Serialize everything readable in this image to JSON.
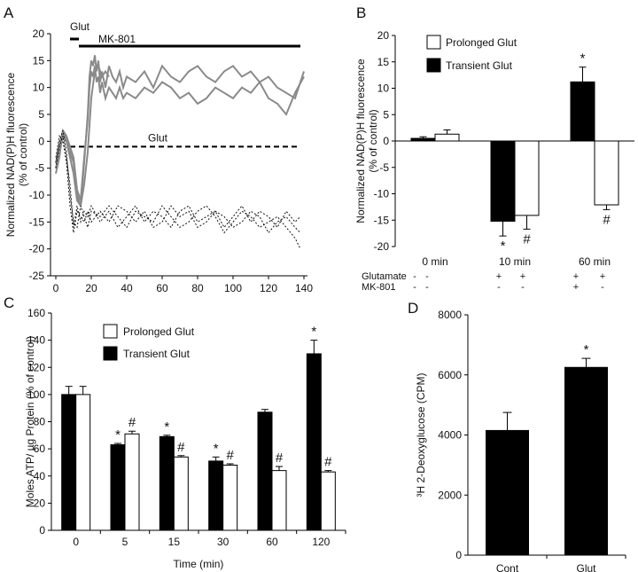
{
  "chart_data": [
    {
      "panel": "A",
      "type": "line",
      "ylabel": "Normalized NAD(P)H fluorescence (% of control)",
      "ylabel_lines": [
        "Normalized NAD(P)H fluorescence",
        "(% of control)"
      ],
      "xlim": [
        0,
        140
      ],
      "ylim": [
        -25,
        20
      ],
      "xticks": [
        0,
        20,
        40,
        60,
        80,
        100,
        120,
        140
      ],
      "yticks": [
        20,
        15,
        10,
        5,
        0,
        -5,
        -10,
        -15,
        -20,
        -25
      ],
      "annotations": {
        "glut_bar": "Glut",
        "mk801_bar": "MK-801",
        "glut_line": "Glut"
      },
      "treatment_bars": {
        "glut": [
          8,
          13
        ],
        "mk801": [
          13,
          138
        ]
      },
      "reference_level": -1,
      "series": [
        {
          "style": "solid-gray",
          "x": [
            0,
            2,
            4,
            6,
            8,
            10,
            12,
            14,
            16,
            18,
            19,
            20,
            21,
            22,
            23,
            24,
            25,
            26,
            28,
            30,
            32,
            34,
            36,
            38,
            40,
            45,
            50,
            55,
            60,
            65,
            70,
            75,
            80,
            85,
            90,
            95,
            100,
            105,
            110,
            115,
            120,
            125,
            130,
            135,
            140
          ],
          "values": [
            -5,
            -2,
            1,
            0,
            -2,
            -4,
            -10,
            -12,
            -4,
            5,
            12,
            15,
            14,
            16,
            13,
            15,
            11,
            13,
            10,
            14,
            12,
            11,
            13,
            10,
            12,
            11,
            13,
            10,
            14,
            12,
            11,
            13,
            14,
            12,
            11,
            13,
            14,
            12,
            13,
            11,
            12,
            10,
            9,
            8,
            13
          ]
        },
        {
          "style": "solid-gray",
          "x": [
            0,
            2,
            4,
            6,
            8,
            10,
            12,
            14,
            16,
            18,
            19,
            20,
            21,
            22,
            23,
            24,
            25,
            26,
            28,
            30,
            32,
            34,
            36,
            38,
            40,
            45,
            50,
            55,
            60,
            65,
            70,
            75,
            80,
            85,
            90,
            95,
            100,
            105,
            110,
            115,
            120,
            125,
            130,
            135,
            140
          ],
          "values": [
            -4,
            -1,
            2,
            1,
            -1,
            -3,
            -9,
            -11,
            -3,
            4,
            10,
            13,
            12,
            14,
            11,
            12,
            9,
            11,
            8,
            10,
            9,
            8,
            10,
            8,
            9,
            8,
            10,
            9,
            11,
            10,
            8,
            9,
            7,
            8,
            10,
            9,
            8,
            10,
            9,
            11,
            8,
            7,
            5,
            9,
            12
          ]
        },
        {
          "style": "solid-gray",
          "x": [
            0,
            2,
            4,
            6,
            8,
            10,
            12,
            14,
            16,
            18,
            20,
            22,
            24,
            26,
            28,
            30
          ],
          "values": [
            -6,
            -3,
            2,
            0,
            -3,
            -6,
            -11,
            -12,
            -8,
            -2,
            8,
            13,
            14,
            12,
            13,
            12
          ]
        },
        {
          "style": "dotted-black",
          "x": [
            0,
            2,
            4,
            6,
            8,
            10,
            12,
            14,
            16,
            18,
            20,
            25,
            30,
            35,
            40,
            45,
            50,
            55,
            60,
            65,
            70,
            75,
            80,
            85,
            90,
            95,
            100,
            105,
            110,
            115,
            120,
            125,
            130,
            135,
            138
          ],
          "values": [
            -5,
            -1,
            1,
            -3,
            -8,
            -16,
            -12,
            -15,
            -13,
            -14,
            -12,
            -15,
            -13,
            -16,
            -14,
            -12,
            -15,
            -13,
            -14,
            -16,
            -13,
            -12,
            -15,
            -14,
            -13,
            -16,
            -14,
            -12,
            -15,
            -13,
            -14,
            -16,
            -13,
            -15,
            -14
          ]
        },
        {
          "style": "dotted-black",
          "x": [
            0,
            2,
            4,
            6,
            8,
            10,
            12,
            14,
            16,
            18,
            20,
            25,
            30,
            35,
            40,
            45,
            50,
            55,
            60,
            65,
            70,
            75,
            80,
            85,
            90,
            95,
            100,
            105,
            110,
            115,
            120,
            125,
            130,
            135,
            138
          ],
          "values": [
            -4,
            0,
            2,
            -2,
            -10,
            -15,
            -16,
            -12,
            -14,
            -16,
            -13,
            -14,
            -12,
            -14,
            -16,
            -13,
            -14,
            -15,
            -12,
            -14,
            -16,
            -15,
            -13,
            -12,
            -14,
            -17,
            -15,
            -13,
            -14,
            -16,
            -15,
            -14,
            -16,
            -18,
            -20
          ]
        },
        {
          "style": "dotted-black",
          "x": [
            0,
            2,
            4,
            6,
            8,
            10,
            12,
            14,
            16,
            18,
            20,
            25,
            30,
            35,
            40,
            45,
            50,
            55,
            60,
            65,
            70,
            75,
            80,
            85,
            90,
            95,
            100,
            105,
            110,
            115,
            120,
            125,
            130,
            135,
            138
          ],
          "values": [
            -3,
            1,
            0,
            -4,
            -12,
            -17,
            -13,
            -14,
            -15,
            -13,
            -15,
            -13,
            -15,
            -12,
            -13,
            -15,
            -13,
            -16,
            -15,
            -12,
            -14,
            -13,
            -16,
            -15,
            -13,
            -14,
            -16,
            -15,
            -13,
            -14,
            -17,
            -15,
            -14,
            -16,
            -17
          ]
        }
      ]
    },
    {
      "panel": "B",
      "type": "bar",
      "ylabel": "Normalized NAD(P)H fluorescence (% of control)",
      "ylabel_lines": [
        "Normalized NAD(P)H fluorescence",
        "(% of control)"
      ],
      "ylim": [
        -20,
        20
      ],
      "yticks": [
        20,
        15,
        10,
        5,
        0,
        -5,
        -10,
        -15,
        -20
      ],
      "categories": [
        "0 min",
        "10 min",
        "60 min"
      ],
      "series": [
        {
          "name": "Transient Glut",
          "fill": "#000000",
          "values": [
            0.5,
            -15.2,
            11.2
          ],
          "errors": [
            0.3,
            2.8,
            2.8
          ],
          "marks": [
            "",
            "*",
            "*"
          ]
        },
        {
          "name": "Prolonged Glut",
          "fill": "#ffffff",
          "values": [
            1.3,
            -14.1,
            -12.1
          ],
          "errors": [
            0.8,
            2.6,
            0.9
          ],
          "marks": [
            "",
            "#",
            "#"
          ]
        }
      ],
      "legend": [
        "Prolonged Glut",
        "Transient Glut"
      ],
      "legend_position": "top-left",
      "condition_rows": [
        {
          "label": "Glutamate",
          "values": [
            "-",
            "-",
            "+",
            "+",
            "+",
            "+"
          ]
        },
        {
          "label": "MK-801",
          "values": [
            "-",
            "-",
            "-",
            "-",
            "+",
            "-"
          ]
        }
      ]
    },
    {
      "panel": "C",
      "type": "bar",
      "xlabel": "Time (min)",
      "ylabel": "Moles ATP/ µg Protein (% of control)",
      "ylim": [
        0,
        160
      ],
      "yticks": [
        160,
        140,
        120,
        100,
        80,
        60,
        40,
        20,
        0
      ],
      "categories": [
        "0",
        "5",
        "15",
        "30",
        "60",
        "120"
      ],
      "series": [
        {
          "name": "Transient Glut",
          "fill": "#000000",
          "values": [
            100,
            63,
            69,
            51,
            87,
            130
          ],
          "errors": [
            6,
            1,
            1,
            3,
            2,
            10
          ],
          "marks": [
            "",
            "*",
            "*",
            "*",
            "",
            "*"
          ]
        },
        {
          "name": "Prolonged Glut",
          "fill": "#ffffff",
          "values": [
            100,
            71,
            54,
            48,
            44,
            43
          ],
          "errors": [
            6,
            2,
            1,
            1,
            3,
            1
          ],
          "marks": [
            "",
            "#",
            "#",
            "#",
            "#",
            "#"
          ]
        }
      ],
      "legend": [
        "Prolonged Glut",
        "Transient Glut"
      ],
      "legend_position": "top-left"
    },
    {
      "panel": "D",
      "type": "bar",
      "ylabel": "³H 2-Deoxyglucose (CPM)",
      "ylim": [
        0,
        8000
      ],
      "yticks": [
        8000,
        6000,
        4000,
        2000,
        0
      ],
      "categories": [
        "Cont",
        "Glut"
      ],
      "series": [
        {
          "fill": "#000000",
          "values": [
            4150,
            6250
          ],
          "errors": [
            600,
            300
          ],
          "marks": [
            "",
            "*"
          ]
        }
      ]
    }
  ]
}
